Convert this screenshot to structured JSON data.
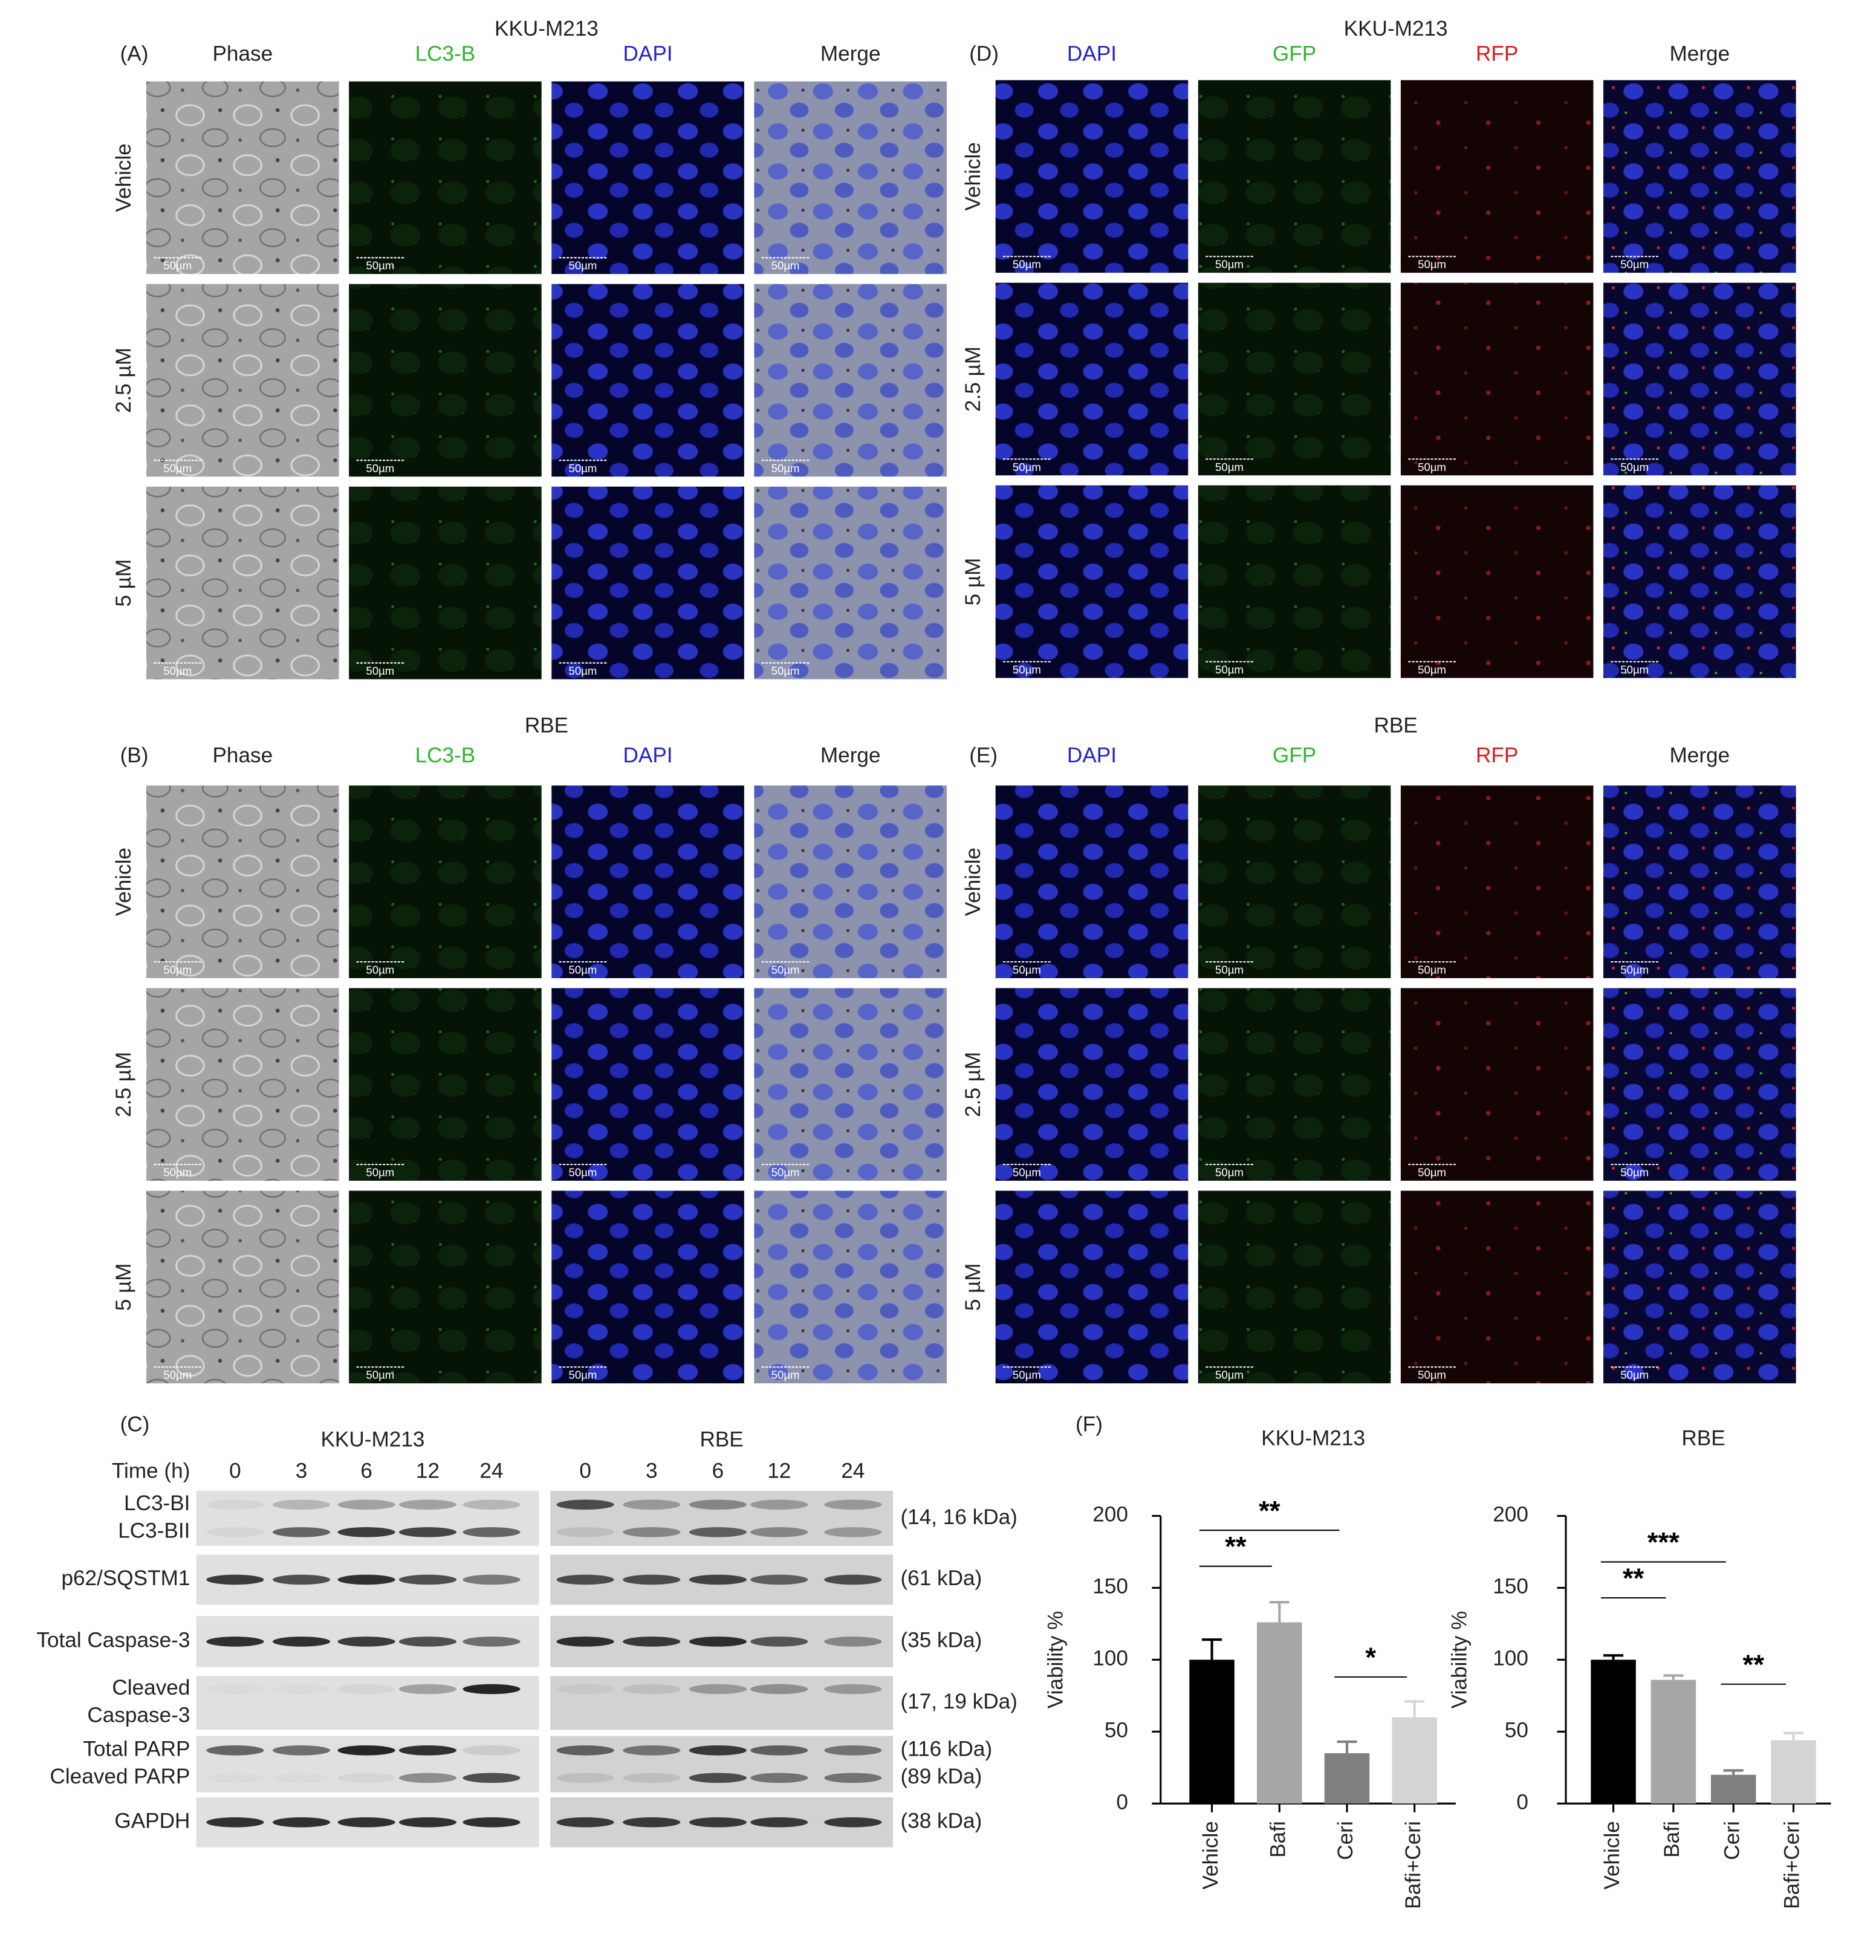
{
  "panels": [
    {
      "label": "(A)",
      "title": "KKU-M213",
      "columns": [
        "Phase",
        "LC3-B",
        "DAPI",
        "Merge"
      ],
      "rows": [
        "Vehicle",
        "2.5 µM",
        "5 µM"
      ],
      "scale_bar": "50µm"
    },
    {
      "label": "(D)",
      "title": "KKU-M213",
      "columns": [
        "DAPI",
        "GFP",
        "RFP",
        "Merge"
      ],
      "rows": [
        "Vehicle",
        "2.5 µM",
        "5 µM"
      ],
      "scale_bar": "50µm"
    },
    {
      "label": "(B)",
      "title": "RBE",
      "columns": [
        "Phase",
        "LC3-B",
        "DAPI",
        "Merge"
      ],
      "rows": [
        "Vehicle",
        "2.5 µM",
        "5 µM"
      ],
      "scale_bar": "50µm"
    },
    {
      "label": "(E)",
      "title": "RBE",
      "columns": [
        "DAPI",
        "GFP",
        "RFP",
        "Merge"
      ],
      "rows": [
        "Vehicle",
        "2.5 µM",
        "5 µM"
      ],
      "scale_bar": "50µm"
    }
  ],
  "blot": {
    "label": "(C)",
    "axis_label": "Time (h)",
    "groups": [
      {
        "name": "KKU-M213",
        "times": [
          0,
          3,
          6,
          12,
          24
        ]
      },
      {
        "name": "RBE",
        "times": [
          0,
          3,
          6,
          12,
          24
        ]
      }
    ],
    "rows": [
      {
        "labels": [
          "LC3-BI",
          "LC3-BII"
        ],
        "sizes": [
          "(14, 16 kDa)"
        ]
      },
      {
        "labels": [
          "p62/SQSTM1"
        ],
        "sizes": [
          "(61 kDa)"
        ]
      },
      {
        "labels": [
          "Total Caspase-3"
        ],
        "sizes": [
          "(35 kDa)"
        ]
      },
      {
        "labels": [
          "Cleaved",
          "Caspase-3"
        ],
        "sizes": [
          "(17, 19 kDa)"
        ]
      },
      {
        "labels": [
          "Total PARP",
          "Cleaved PARP"
        ],
        "sizes": [
          "(116 kDa)",
          "(89 kDa)"
        ]
      },
      {
        "labels": [
          "GAPDH"
        ],
        "sizes": [
          "(38 kDa)"
        ]
      }
    ]
  },
  "panel_f": {
    "label": "(F)"
  },
  "chart_data": [
    {
      "type": "bar",
      "title": "KKU-M213",
      "y_label": "Viability %",
      "categories": [
        "Vehicle",
        "Bafi",
        "Ceri",
        "Bafi+Ceri"
      ],
      "values": [
        100,
        126,
        35,
        60
      ],
      "error": [
        14,
        14,
        8,
        11
      ],
      "colors": [
        "#000000",
        "#a6a6a8",
        "#7f7f7f",
        "#d4d4d4"
      ],
      "ylim": [
        0,
        200
      ],
      "yticks": [
        0,
        50,
        100,
        150,
        200
      ],
      "annotations": [
        {
          "text": "**",
          "y": 190,
          "between": [
            0,
            2
          ]
        },
        {
          "text": "**",
          "y": 165,
          "between": [
            0,
            1
          ]
        },
        {
          "text": "*",
          "y": 88,
          "between": [
            2,
            3
          ]
        }
      ]
    },
    {
      "type": "bar",
      "title": "RBE",
      "y_label": "Viability %",
      "categories": [
        "Vehicle",
        "Bafi",
        "Ceri",
        "Bafi+Ceri"
      ],
      "values": [
        100,
        86,
        20,
        44
      ],
      "error": [
        3,
        3,
        3,
        5
      ],
      "colors": [
        "#000000",
        "#a6a6a8",
        "#7f7f7f",
        "#d4d4d4"
      ],
      "ylim": [
        0,
        200
      ],
      "yticks": [
        0,
        50,
        100,
        150,
        200
      ],
      "annotations": [
        {
          "text": "***",
          "y": 168,
          "between": [
            0,
            2
          ]
        },
        {
          "text": "**",
          "y": 143,
          "between": [
            0,
            1
          ]
        },
        {
          "text": "**",
          "y": 83,
          "between": [
            2,
            3
          ]
        }
      ]
    }
  ]
}
